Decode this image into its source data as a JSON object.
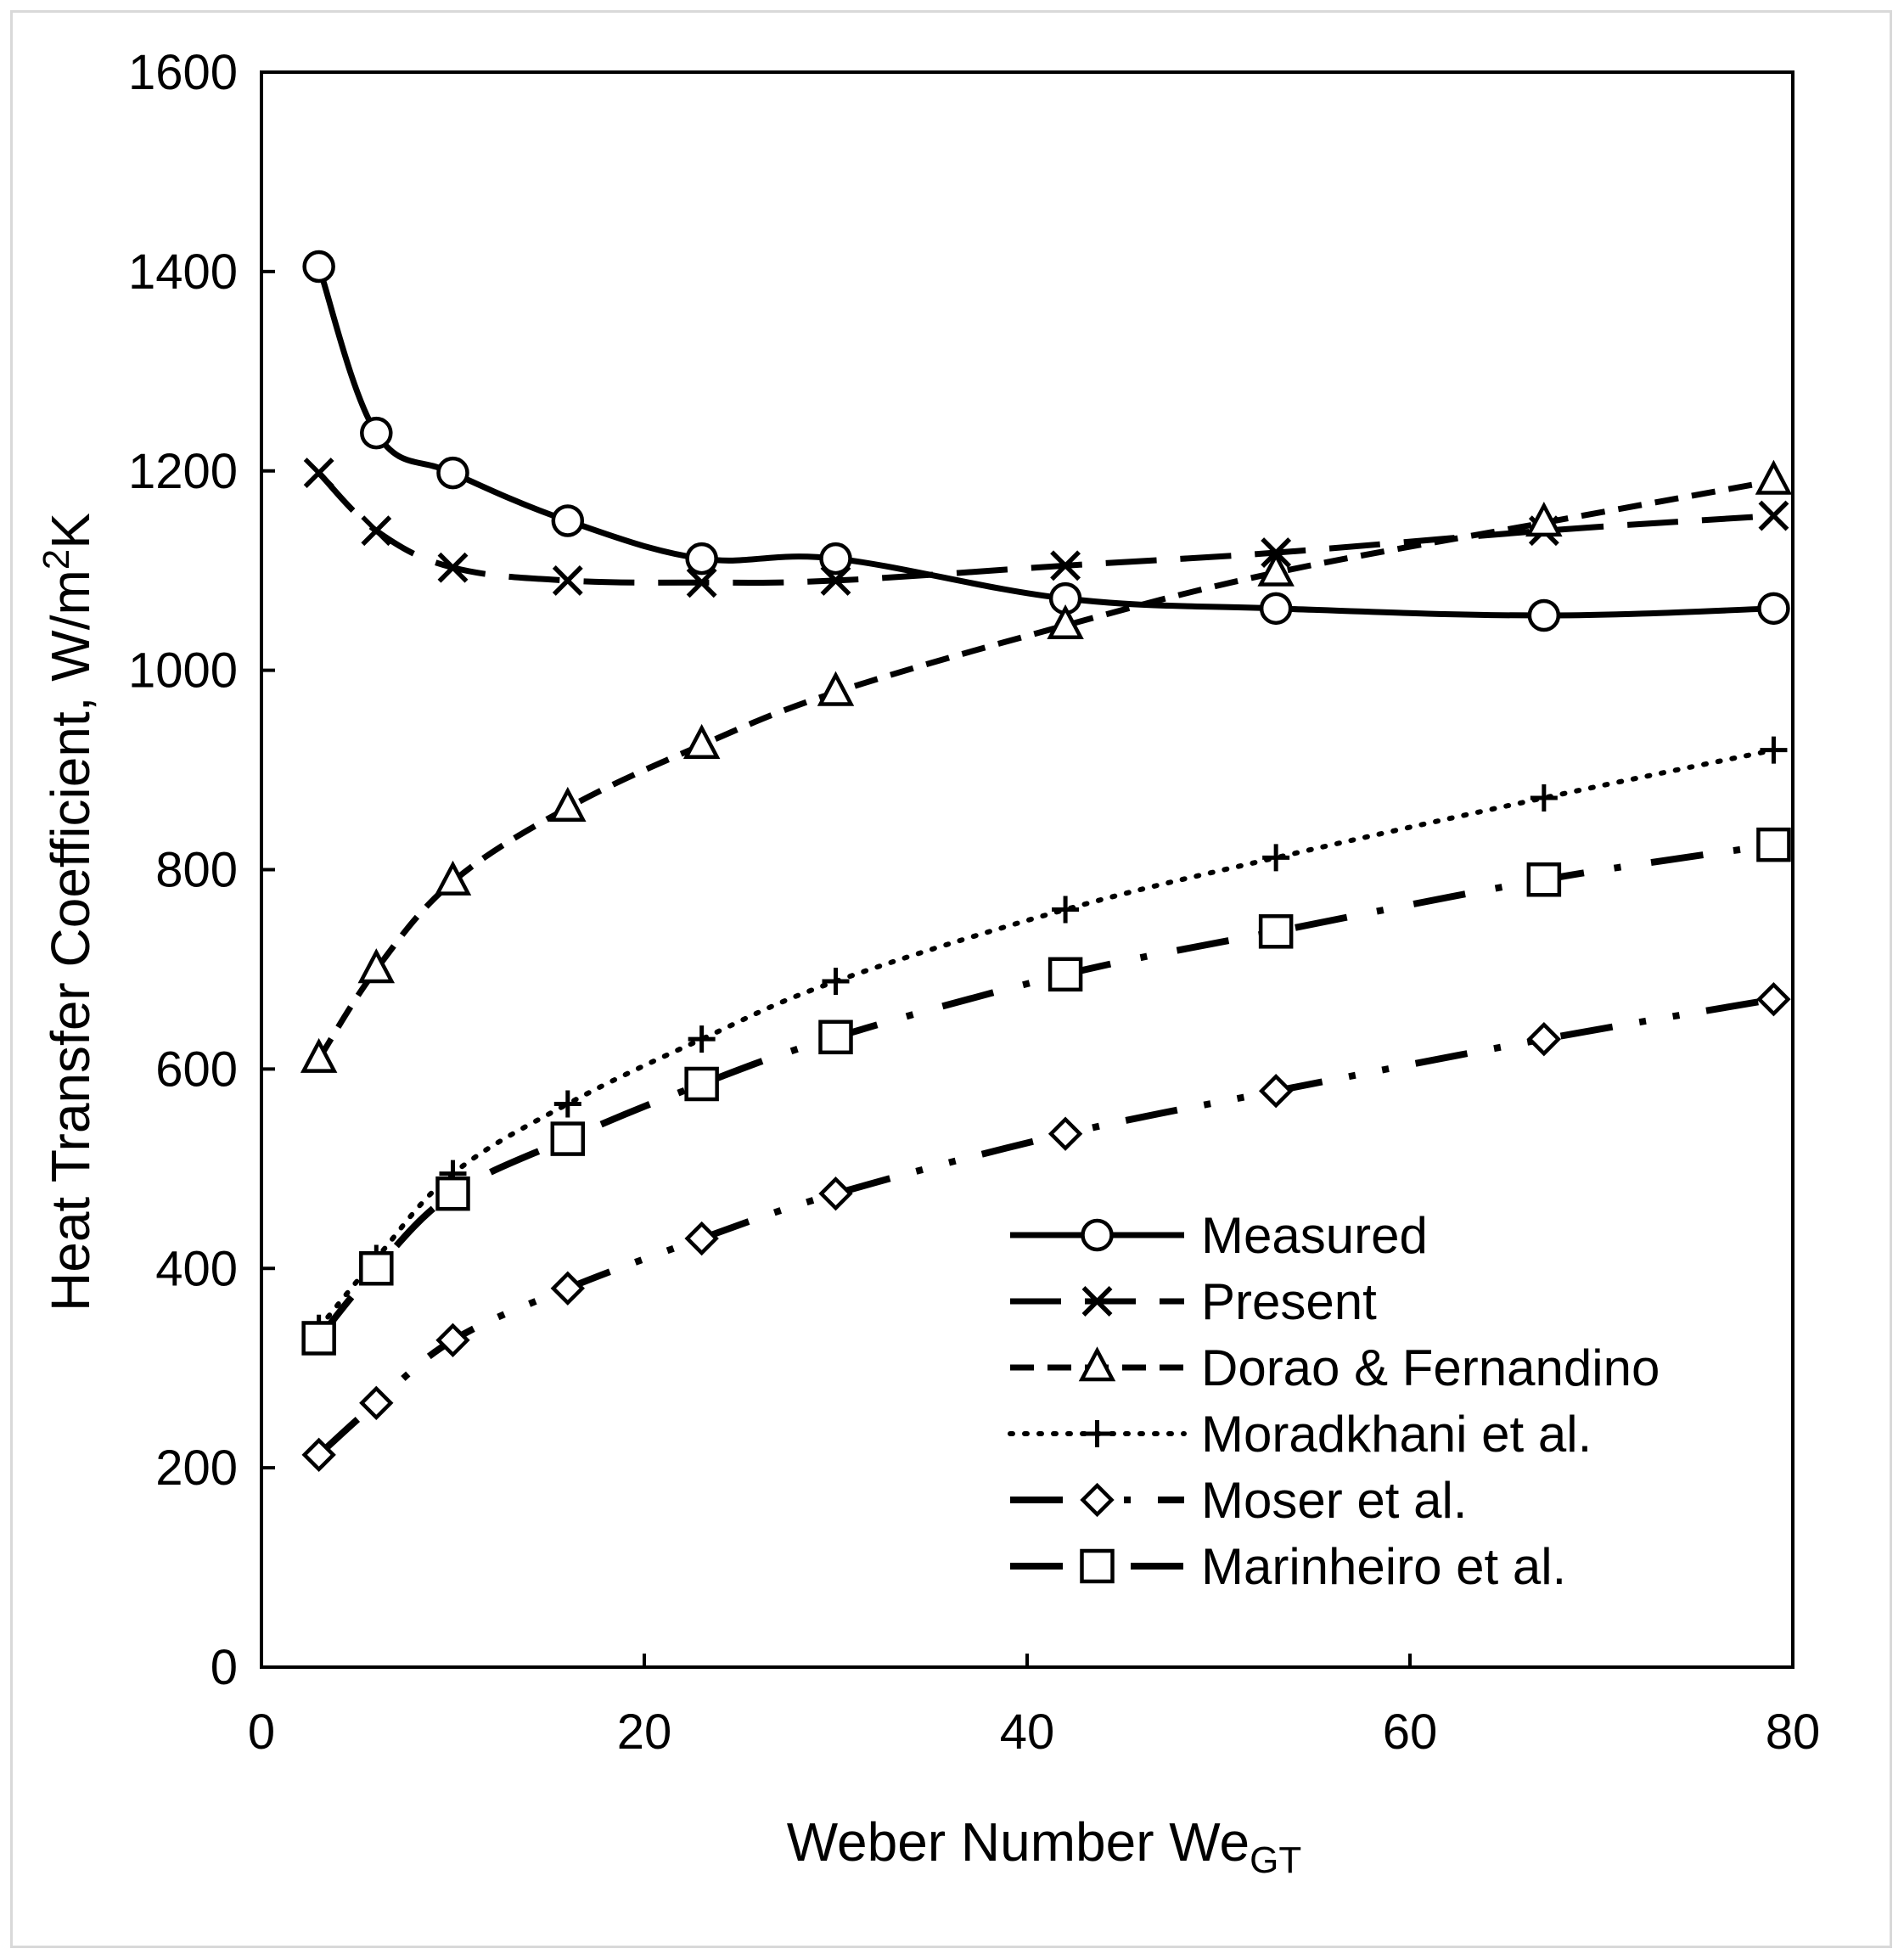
{
  "chart_data": {
    "type": "line",
    "title": "",
    "xlabel": "Weber Number We",
    "xlabel_sub": "GT",
    "ylabel": "Heat Transfer Coefficient, W/m",
    "ylabel_sup": "2",
    "ylabel_tail": "K",
    "xlim": [
      0,
      80
    ],
    "ylim": [
      0,
      1600
    ],
    "xticks": [
      0,
      20,
      40,
      60,
      80
    ],
    "yticks": [
      0,
      200,
      400,
      600,
      800,
      1000,
      1200,
      1400,
      1600
    ],
    "grid": false,
    "legend_position": "bottom-right",
    "x": [
      3,
      6,
      10,
      16,
      23,
      30,
      42,
      53,
      67,
      79
    ],
    "series": [
      {
        "name": "Measured",
        "marker": "circle",
        "line": "solid",
        "values": [
          1405,
          1238,
          1198,
          1150,
          1112,
          1112,
          1072,
          1062,
          1055,
          1062
        ]
      },
      {
        "name": "Present",
        "marker": "x",
        "line": "longdash",
        "values": [
          1198,
          1140,
          1103,
          1090,
          1088,
          1090,
          1105,
          1118,
          1140,
          1155
        ]
      },
      {
        "name": "Dorao & Fernandino",
        "marker": "triangle",
        "line": "dash",
        "values": [
          610,
          700,
          788,
          862,
          925,
          978,
          1045,
          1098,
          1148,
          1190
        ]
      },
      {
        "name": "Moradkhani et al.",
        "marker": "plus",
        "line": "dotted",
        "values": [
          340,
          410,
          495,
          565,
          630,
          688,
          760,
          812,
          872,
          920
        ]
      },
      {
        "name": "Moser et al.",
        "marker": "diamond",
        "line": "dashdotdot",
        "values": [
          213,
          265,
          328,
          380,
          430,
          475,
          535,
          578,
          630,
          670
        ]
      },
      {
        "name": "Marinheiro et al.",
        "marker": "square",
        "line": "dashdot",
        "values": [
          330,
          400,
          475,
          530,
          585,
          632,
          695,
          738,
          790,
          825
        ]
      }
    ]
  }
}
